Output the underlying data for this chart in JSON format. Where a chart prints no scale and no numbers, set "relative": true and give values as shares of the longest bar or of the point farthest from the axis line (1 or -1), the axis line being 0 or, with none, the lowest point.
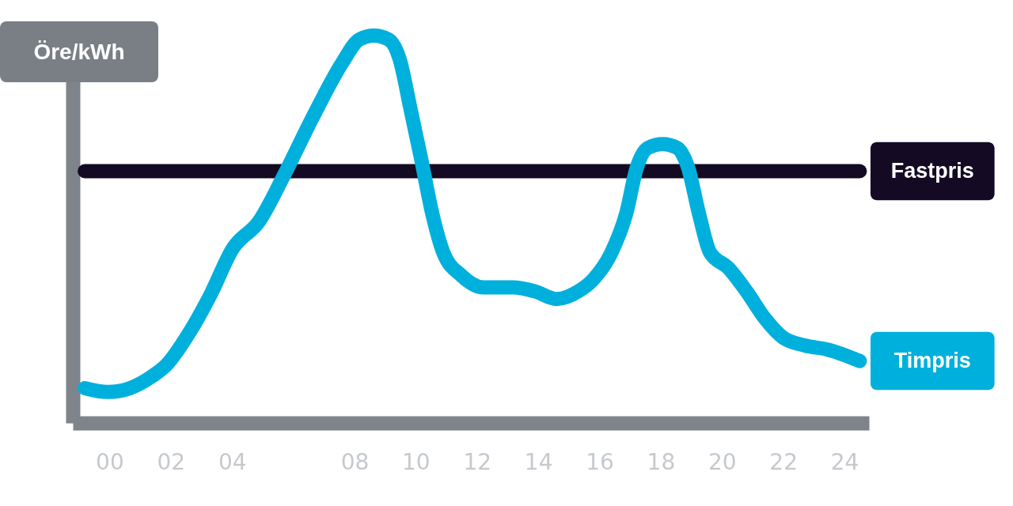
{
  "chart_data": {
    "type": "line",
    "ylabel": "Öre/kWh",
    "relative": true,
    "tick_labels": "x",
    "legend": false,
    "xlim": [
      -1.2,
      24.8
    ],
    "xticks": [
      {
        "value": 0,
        "label": "00"
      },
      {
        "value": 2,
        "label": "02"
      },
      {
        "value": 4,
        "label": "04"
      },
      {
        "value": 8,
        "label": "08"
      },
      10,
      12,
      14,
      16,
      18,
      20,
      22,
      24
    ],
    "series": [
      {
        "name": "Fastpris",
        "color": "#140a24",
        "x": [
          -0.81,
          24.5
        ],
        "values": [
          0.65,
          0.65
        ]
      },
      {
        "name": "Timpris",
        "color": "#00b0dc",
        "x": [
          -0.81,
          -0.05,
          0.67,
          1.38,
          1.86,
          2.58,
          3.29,
          4.02,
          4.88,
          5.7,
          6.64,
          7.6,
          8.16,
          8.63,
          9.11,
          9.47,
          9.83,
          10.18,
          10.54,
          10.9,
          11.5,
          12.21,
          13.17,
          13.88,
          14.6,
          15.31,
          15.79,
          16.39,
          16.87,
          17.22,
          17.58,
          18.06,
          18.54,
          18.89,
          19.25,
          19.61,
          20.21,
          20.8,
          21.4,
          22.0,
          22.71,
          23.43,
          24.5
        ],
        "values": [
          0.09,
          0.08,
          0.09,
          0.12,
          0.15,
          0.23,
          0.33,
          0.45,
          0.52,
          0.64,
          0.79,
          0.93,
          0.99,
          1.0,
          0.99,
          0.94,
          0.81,
          0.68,
          0.54,
          0.44,
          0.38,
          0.35,
          0.35,
          0.34,
          0.32,
          0.34,
          0.37,
          0.44,
          0.54,
          0.66,
          0.71,
          0.72,
          0.71,
          0.66,
          0.54,
          0.44,
          0.4,
          0.34,
          0.27,
          0.22,
          0.2,
          0.19,
          0.16
        ]
      }
    ]
  }
}
